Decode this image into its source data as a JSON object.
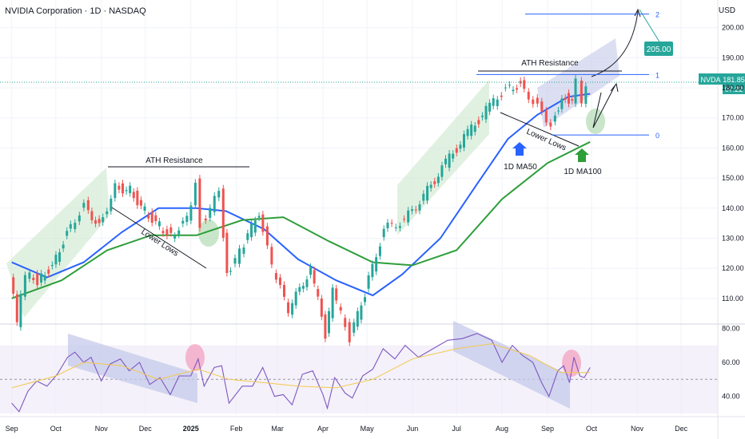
{
  "header": {
    "title": "NVIDIA Corporation · 1D · NASDAQ",
    "currency": "USD"
  },
  "price_badge": {
    "ticker": "NVDA",
    "price": "181.85",
    "countdown": "07:22"
  },
  "colors": {
    "up": "#26a69a",
    "down": "#ef5350",
    "ma50": "#2962ff",
    "ma100": "#2e9e3a",
    "rsi": "#7e57c2",
    "rsi_ma": "#f2c94c",
    "channel_green": "#c8e6c9",
    "channel_blue": "#c5cae9",
    "fib": "#2962ff",
    "target_box": "#26a69a"
  },
  "chart_data": [
    {
      "type": "candlestick",
      "title": "NVIDIA Corporation · 1D · NASDAQ",
      "ylabel": "USD",
      "y_ticks": [
        "200.00",
        "190.00",
        "180.00",
        "170.00",
        "160.00",
        "150.00",
        "140.00",
        "130.00",
        "120.00",
        "110.00"
      ],
      "x_ticks": [
        "Sep",
        "Oct",
        "Nov",
        "Dec",
        "2025",
        "Feb",
        "Mar",
        "Apr",
        "May",
        "Jun",
        "Jul",
        "Aug",
        "Sep",
        "Oct",
        "Nov",
        "Dec"
      ],
      "ylim": [
        102,
        206
      ],
      "close_path": [
        [
          "2024-09-01",
          118
        ],
        [
          "2024-09-06",
          102
        ],
        [
          "2024-09-12",
          118
        ],
        [
          "2024-09-20",
          116
        ],
        [
          "2024-09-30",
          121
        ],
        [
          "2024-10-10",
          132
        ],
        [
          "2024-10-22",
          141
        ],
        [
          "2024-11-01",
          134
        ],
        [
          "2024-11-12",
          147
        ],
        [
          "2024-11-22",
          146
        ],
        [
          "2024-12-02",
          139
        ],
        [
          "2024-12-12",
          134
        ],
        [
          "2024-12-20",
          131
        ],
        [
          "2024-12-31",
          136
        ],
        [
          "2025-01-06",
          149
        ],
        [
          "2025-01-10",
          135
        ],
        [
          "2025-01-22",
          145
        ],
        [
          "2025-01-27",
          118
        ],
        [
          "2025-02-05",
          125
        ],
        [
          "2025-02-18",
          139
        ],
        [
          "2025-02-27",
          120
        ],
        [
          "2025-03-10",
          106
        ],
        [
          "2025-03-25",
          120
        ],
        [
          "2025-04-04",
          98
        ],
        [
          "2025-04-09",
          112
        ],
        [
          "2025-04-21",
          97
        ],
        [
          "2025-05-01",
          112
        ],
        [
          "2025-05-14",
          133
        ],
        [
          "2025-05-28",
          136
        ],
        [
          "2025-06-10",
          144
        ],
        [
          "2025-06-25",
          155
        ],
        [
          "2025-07-10",
          165
        ],
        [
          "2025-07-25",
          174
        ],
        [
          "2025-08-05",
          180
        ],
        [
          "2025-08-15",
          181
        ],
        [
          "2025-08-27",
          174
        ],
        [
          "2025-09-05",
          168
        ],
        [
          "2025-09-12",
          177
        ],
        [
          "2025-09-19",
          176
        ],
        [
          "2025-09-23",
          184
        ],
        [
          "2025-09-26",
          176
        ],
        [
          "2025-09-30",
          181.85
        ]
      ],
      "ma_series": [
        {
          "name": "1D MA50",
          "points": [
            [
              "2024-09-01",
              122
            ],
            [
              "2024-09-25",
              117
            ],
            [
              "2024-10-20",
              122
            ],
            [
              "2024-11-15",
              132
            ],
            [
              "2024-12-10",
              140
            ],
            [
              "2025-01-05",
              140
            ],
            [
              "2025-01-25",
              139
            ],
            [
              "2025-02-20",
              133
            ],
            [
              "2025-03-15",
              123
            ],
            [
              "2025-04-10",
              116
            ],
            [
              "2025-05-05",
              111
            ],
            [
              "2025-05-25",
              118
            ],
            [
              "2025-06-20",
              130
            ],
            [
              "2025-07-15",
              148
            ],
            [
              "2025-08-05",
              163
            ],
            [
              "2025-08-25",
              171
            ],
            [
              "2025-09-15",
              177
            ],
            [
              "2025-09-30",
              178
            ]
          ]
        },
        {
          "name": "1D MA100",
          "points": [
            [
              "2024-09-01",
              110
            ],
            [
              "2024-10-05",
              116
            ],
            [
              "2024-11-05",
              126
            ],
            [
              "2024-12-05",
              131
            ],
            [
              "2025-01-05",
              131
            ],
            [
              "2025-02-05",
              136
            ],
            [
              "2025-03-05",
              137
            ],
            [
              "2025-04-05",
              129
            ],
            [
              "2025-05-05",
              122
            ],
            [
              "2025-06-01",
              121
            ],
            [
              "2025-07-01",
              126
            ],
            [
              "2025-08-01",
              143
            ],
            [
              "2025-09-01",
              155
            ],
            [
              "2025-09-30",
              162
            ]
          ]
        }
      ],
      "annotations": {
        "ath_resistance": [
          "ATH Resistance",
          "ATH Resistance"
        ],
        "lower_lows": [
          "Lower Lows",
          "Lower Lows"
        ],
        "ma50_label": "1D MA50",
        "ma100_label": "1D MA100",
        "fib_levels": [
          {
            "label": "2",
            "price": 204.5
          },
          {
            "label": "1",
            "price": 184.4
          },
          {
            "label": "0",
            "price": 164.3
          }
        ],
        "target": "205.00"
      }
    },
    {
      "type": "line",
      "title": "",
      "y_ticks": [
        "80.00",
        "60.00",
        "40.00"
      ],
      "ylim": [
        29,
        83
      ],
      "series": [
        {
          "points": [
            [
              "2024-09-01",
              36
            ],
            [
              "2024-09-06",
              31
            ],
            [
              "2024-09-12",
              43
            ],
            [
              "2024-09-18",
              49
            ],
            [
              "2024-09-25",
              46
            ],
            [
              "2024-10-02",
              53
            ],
            [
              "2024-10-09",
              63
            ],
            [
              "2024-10-14",
              66
            ],
            [
              "2024-10-20",
              60
            ],
            [
              "2024-10-25",
              63
            ],
            [
              "2024-11-01",
              49
            ],
            [
              "2024-11-07",
              59
            ],
            [
              "2024-11-14",
              62
            ],
            [
              "2024-11-20",
              55
            ],
            [
              "2024-11-27",
              60
            ],
            [
              "2024-12-04",
              47
            ],
            [
              "2024-12-11",
              51
            ],
            [
              "2024-12-18",
              41
            ],
            [
              "2024-12-24",
              52
            ],
            [
              "2025-01-01",
              52
            ],
            [
              "2025-01-06",
              62
            ],
            [
              "2025-01-10",
              46
            ],
            [
              "2025-01-17",
              57
            ],
            [
              "2025-01-22",
              58
            ],
            [
              "2025-01-27",
              36
            ],
            [
              "2025-02-05",
              46
            ],
            [
              "2025-02-12",
              46
            ],
            [
              "2025-02-19",
              57
            ],
            [
              "2025-02-27",
              40
            ],
            [
              "2025-03-05",
              41
            ],
            [
              "2025-03-11",
              35
            ],
            [
              "2025-03-18",
              53
            ],
            [
              "2025-03-25",
              55
            ],
            [
              "2025-04-01",
              41
            ],
            [
              "2025-04-04",
              33
            ],
            [
              "2025-04-09",
              51
            ],
            [
              "2025-04-16",
              42
            ],
            [
              "2025-04-21",
              39
            ],
            [
              "2025-04-28",
              52
            ],
            [
              "2025-05-05",
              56
            ],
            [
              "2025-05-12",
              68
            ],
            [
              "2025-05-20",
              62
            ],
            [
              "2025-05-27",
              70
            ],
            [
              "2025-06-05",
              63
            ],
            [
              "2025-06-15",
              68
            ],
            [
              "2025-06-25",
              73
            ],
            [
              "2025-07-05",
              74
            ],
            [
              "2025-07-15",
              77
            ],
            [
              "2025-07-25",
              73
            ],
            [
              "2025-08-01",
              60
            ],
            [
              "2025-08-08",
              70
            ],
            [
              "2025-08-15",
              64
            ],
            [
              "2025-08-22",
              60
            ],
            [
              "2025-08-28",
              48
            ],
            [
              "2025-09-02",
              40
            ],
            [
              "2025-09-08",
              55
            ],
            [
              "2025-09-12",
              58
            ],
            [
              "2025-09-16",
              48
            ],
            [
              "2025-09-19",
              63
            ],
            [
              "2025-09-23",
              52
            ],
            [
              "2025-09-26",
              51
            ],
            [
              "2025-09-30",
              57
            ]
          ]
        },
        {
          "points": [
            [
              "2024-09-01",
              45
            ],
            [
              "2024-10-01",
              52
            ],
            [
              "2024-10-20",
              60
            ],
            [
              "2024-11-15",
              58
            ],
            [
              "2024-12-10",
              50
            ],
            [
              "2025-01-06",
              56
            ],
            [
              "2025-01-27",
              50
            ],
            [
              "2025-02-20",
              48
            ],
            [
              "2025-03-15",
              46
            ],
            [
              "2025-04-10",
              45
            ],
            [
              "2025-05-05",
              50
            ],
            [
              "2025-06-01",
              62
            ],
            [
              "2025-07-01",
              68
            ],
            [
              "2025-07-25",
              71
            ],
            [
              "2025-08-20",
              64
            ],
            [
              "2025-09-10",
              54
            ],
            [
              "2025-09-30",
              54
            ]
          ]
        }
      ],
      "reference_lines": [
        50
      ]
    }
  ]
}
